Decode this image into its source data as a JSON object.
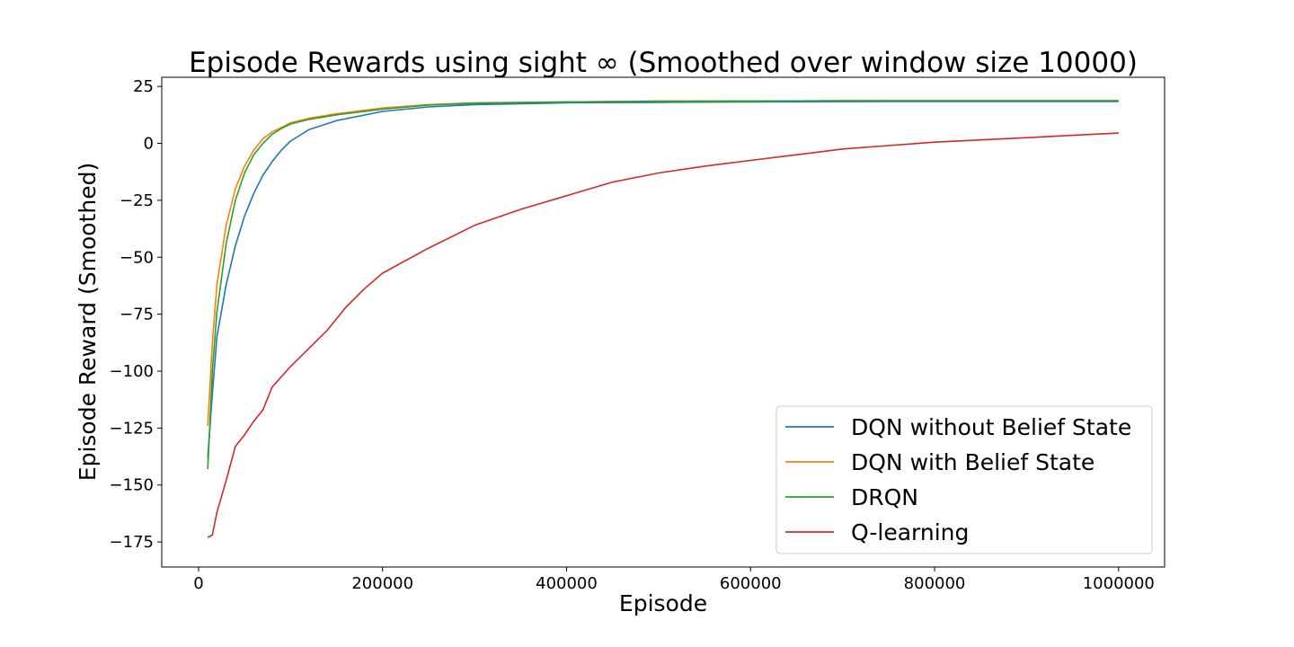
{
  "chart_data": {
    "type": "line",
    "title": "Episode Rewards using sight ∞ (Smoothed over window size 10000)",
    "xlabel": "Episode",
    "ylabel": "Episode Reward (Smoothed)",
    "xlim": [
      -40000,
      1050000
    ],
    "ylim": [
      -186,
      29
    ],
    "xticks": [
      0,
      200000,
      400000,
      600000,
      800000,
      1000000
    ],
    "xtick_labels": [
      "0",
      "200000",
      "400000",
      "600000",
      "800000",
      "1000000"
    ],
    "yticks": [
      -175,
      -150,
      -125,
      -100,
      -75,
      -50,
      -25,
      0,
      25
    ],
    "ytick_labels": [
      "−175",
      "−150",
      "−125",
      "−100",
      "−75",
      "−50",
      "−25",
      "0",
      "25"
    ],
    "grid": false,
    "legend_position": "lower-right",
    "series": [
      {
        "name": "DQN without Belief State",
        "color": "#1f77b4",
        "points": [
          [
            10000,
            -138
          ],
          [
            15000,
            -110
          ],
          [
            20000,
            -85
          ],
          [
            30000,
            -62
          ],
          [
            40000,
            -45
          ],
          [
            50000,
            -32
          ],
          [
            60000,
            -22
          ],
          [
            70000,
            -14
          ],
          [
            80000,
            -8
          ],
          [
            90000,
            -3
          ],
          [
            100000,
            1
          ],
          [
            120000,
            6
          ],
          [
            150000,
            10
          ],
          [
            200000,
            14
          ],
          [
            250000,
            16
          ],
          [
            300000,
            17
          ],
          [
            400000,
            17.8
          ],
          [
            500000,
            18
          ],
          [
            600000,
            18.2
          ],
          [
            700000,
            18.3
          ],
          [
            800000,
            18.4
          ],
          [
            900000,
            18.4
          ],
          [
            1000000,
            18.4
          ]
        ]
      },
      {
        "name": "DQN with Belief State",
        "color": "#ff7f0e",
        "points": [
          [
            10000,
            -124
          ],
          [
            15000,
            -88
          ],
          [
            20000,
            -62
          ],
          [
            30000,
            -36
          ],
          [
            40000,
            -20
          ],
          [
            50000,
            -10
          ],
          [
            60000,
            -3
          ],
          [
            70000,
            2
          ],
          [
            80000,
            5
          ],
          [
            90000,
            7
          ],
          [
            100000,
            9
          ],
          [
            120000,
            11
          ],
          [
            150000,
            13
          ],
          [
            200000,
            15.5
          ],
          [
            250000,
            17
          ],
          [
            300000,
            17.8
          ],
          [
            400000,
            18.2
          ],
          [
            500000,
            18.5
          ],
          [
            600000,
            18.6
          ],
          [
            700000,
            18.7
          ],
          [
            800000,
            18.7
          ],
          [
            900000,
            18.7
          ],
          [
            1000000,
            18.7
          ]
        ]
      },
      {
        "name": "DRQN",
        "color": "#2ca02c",
        "points": [
          [
            10000,
            -143
          ],
          [
            15000,
            -100
          ],
          [
            20000,
            -74
          ],
          [
            30000,
            -44
          ],
          [
            40000,
            -25
          ],
          [
            50000,
            -13
          ],
          [
            60000,
            -5
          ],
          [
            70000,
            0
          ],
          [
            80000,
            4
          ],
          [
            90000,
            6.5
          ],
          [
            100000,
            8.5
          ],
          [
            120000,
            10.5
          ],
          [
            150000,
            12.5
          ],
          [
            200000,
            15
          ],
          [
            250000,
            16.8
          ],
          [
            300000,
            17.6
          ],
          [
            400000,
            18.2
          ],
          [
            500000,
            18.5
          ],
          [
            600000,
            18.6
          ],
          [
            700000,
            18.7
          ],
          [
            800000,
            18.7
          ],
          [
            900000,
            18.7
          ],
          [
            1000000,
            18.7
          ]
        ]
      },
      {
        "name": "Q-learning",
        "color": "#d62728",
        "points": [
          [
            10000,
            -173
          ],
          [
            15000,
            -172
          ],
          [
            20000,
            -162
          ],
          [
            30000,
            -148
          ],
          [
            40000,
            -133
          ],
          [
            50000,
            -128
          ],
          [
            60000,
            -122
          ],
          [
            70000,
            -117
          ],
          [
            80000,
            -107
          ],
          [
            100000,
            -98
          ],
          [
            120000,
            -90
          ],
          [
            140000,
            -82
          ],
          [
            160000,
            -72
          ],
          [
            180000,
            -64
          ],
          [
            200000,
            -57
          ],
          [
            250000,
            -46
          ],
          [
            300000,
            -36
          ],
          [
            350000,
            -29
          ],
          [
            400000,
            -23
          ],
          [
            450000,
            -17
          ],
          [
            500000,
            -13
          ],
          [
            550000,
            -10
          ],
          [
            600000,
            -7.5
          ],
          [
            650000,
            -5
          ],
          [
            700000,
            -2.5
          ],
          [
            750000,
            -1
          ],
          [
            800000,
            0.5
          ],
          [
            850000,
            1.5
          ],
          [
            900000,
            2.5
          ],
          [
            950000,
            3.5
          ],
          [
            1000000,
            4.5
          ]
        ]
      }
    ]
  }
}
